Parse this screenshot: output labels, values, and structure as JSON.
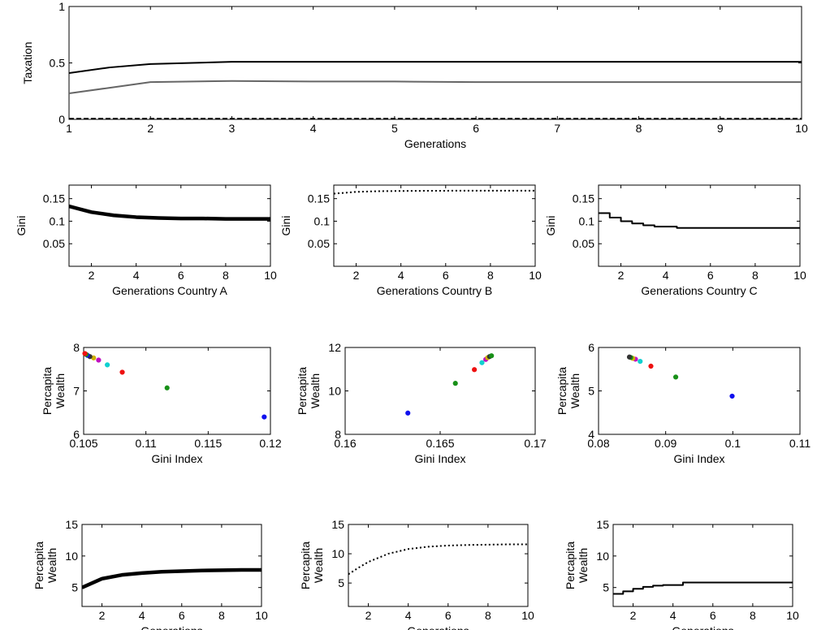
{
  "chart_data": [
    {
      "id": "taxation",
      "type": "line",
      "xlabel": "Generations",
      "ylabel": "Taxation",
      "xlim": [
        1,
        10
      ],
      "ylim": [
        0,
        1
      ],
      "xticks": [
        1,
        2,
        3,
        4,
        5,
        6,
        7,
        8,
        9,
        10
      ],
      "yticks": [
        0,
        0.5,
        1
      ],
      "ytick_labels": [
        "0",
        "0.5",
        "1"
      ],
      "series": [
        {
          "style": "solid",
          "color": "#000000",
          "x": [
            1,
            1.5,
            2,
            3,
            4,
            5,
            6,
            7,
            8,
            9,
            10
          ],
          "y": [
            0.41,
            0.46,
            0.49,
            0.51,
            0.51,
            0.51,
            0.51,
            0.51,
            0.51,
            0.51,
            0.51
          ]
        },
        {
          "style": "solid",
          "color": "#666666",
          "x": [
            1,
            1.5,
            2,
            3,
            4,
            5,
            6,
            7,
            8,
            9,
            10
          ],
          "y": [
            0.23,
            0.28,
            0.33,
            0.34,
            0.335,
            0.335,
            0.33,
            0.33,
            0.33,
            0.33,
            0.33
          ]
        },
        {
          "style": "dashed",
          "color": "#000000",
          "x": [
            1,
            10
          ],
          "y": [
            0.005,
            0.005
          ]
        }
      ]
    },
    {
      "id": "gini-a",
      "type": "line",
      "xlabel": "Generations Country A",
      "ylabel": "Gini",
      "xlim": [
        1,
        10
      ],
      "ylim": [
        0,
        0.18
      ],
      "xticks": [
        2,
        4,
        6,
        8,
        10
      ],
      "yticks": [
        0.05,
        0.1,
        0.15
      ],
      "ytick_labels": [
        "0.05",
        "0.1",
        "0.15"
      ],
      "series": [
        {
          "style": "thick",
          "color": "#000000",
          "x": [
            1,
            2,
            3,
            4,
            5,
            6,
            7,
            8,
            9,
            10
          ],
          "y": [
            0.133,
            0.12,
            0.113,
            0.109,
            0.107,
            0.106,
            0.106,
            0.105,
            0.105,
            0.105
          ]
        }
      ]
    },
    {
      "id": "gini-b",
      "type": "line",
      "xlabel": "Generations Country B",
      "ylabel": "Gini",
      "xlim": [
        1,
        10
      ],
      "ylim": [
        0,
        0.18
      ],
      "xticks": [
        2,
        4,
        6,
        8,
        10
      ],
      "yticks": [
        0.05,
        0.1,
        0.15
      ],
      "ytick_labels": [
        "0.05",
        "0.1",
        "0.15"
      ],
      "series": [
        {
          "style": "dotted",
          "color": "#000000",
          "x": [
            1,
            2,
            3,
            4,
            5,
            6,
            7,
            8,
            9,
            10
          ],
          "y": [
            0.161,
            0.165,
            0.1665,
            0.167,
            0.1673,
            0.1675,
            0.1676,
            0.1677,
            0.1677,
            0.1677
          ]
        }
      ]
    },
    {
      "id": "gini-c",
      "type": "line",
      "xlabel": "Generations Country C",
      "ylabel": "Gini",
      "xlim": [
        1,
        10
      ],
      "ylim": [
        0,
        0.18
      ],
      "xticks": [
        2,
        4,
        6,
        8,
        10
      ],
      "yticks": [
        0.05,
        0.1,
        0.15
      ],
      "ytick_labels": [
        "0.05",
        "0.1",
        "0.15"
      ],
      "series": [
        {
          "style": "step",
          "color": "#000000",
          "x": [
            1,
            1.5,
            2,
            2.5,
            3,
            3.5,
            4.5,
            10
          ],
          "y": [
            0.118,
            0.108,
            0.1,
            0.095,
            0.091,
            0.088,
            0.085,
            0.085
          ]
        }
      ]
    },
    {
      "id": "scatter-a",
      "type": "scatter",
      "xlabel": "Gini Index",
      "ylabel": [
        "Percapita",
        "Wealth"
      ],
      "xlim": [
        0.105,
        0.12
      ],
      "ylim": [
        6,
        8
      ],
      "xticks": [
        0.105,
        0.11,
        0.115,
        0.12
      ],
      "xtick_labels": [
        "0.105",
        "0.11",
        "0.115",
        "0.12"
      ],
      "yticks": [
        6,
        7,
        8
      ],
      "ytick_labels": [
        "6",
        "7",
        "8"
      ],
      "points": [
        {
          "x": 0.1195,
          "y": 6.4,
          "color": "#1010ee"
        },
        {
          "x": 0.1117,
          "y": 7.07,
          "color": "#189018"
        },
        {
          "x": 0.1081,
          "y": 7.43,
          "color": "#ee1010"
        },
        {
          "x": 0.1069,
          "y": 7.6,
          "color": "#10d0d0"
        },
        {
          "x": 0.1062,
          "y": 7.71,
          "color": "#c010c0"
        },
        {
          "x": 0.1058,
          "y": 7.76,
          "color": "#d0b000"
        },
        {
          "x": 0.1055,
          "y": 7.79,
          "color": "#333333"
        },
        {
          "x": 0.1053,
          "y": 7.82,
          "color": "#1010ee"
        },
        {
          "x": 0.1052,
          "y": 7.84,
          "color": "#189018"
        },
        {
          "x": 0.1051,
          "y": 7.86,
          "color": "#ee1010"
        }
      ]
    },
    {
      "id": "scatter-b",
      "type": "scatter",
      "xlabel": "Gini Index",
      "ylabel": [
        "Percapita",
        "Wealth"
      ],
      "xlim": [
        0.16,
        0.17
      ],
      "ylim": [
        8,
        12
      ],
      "xticks": [
        0.16,
        0.165,
        0.17
      ],
      "xtick_labels": [
        "0.16",
        "0.165",
        "0.17"
      ],
      "yticks": [
        8,
        10,
        12
      ],
      "ytick_labels": [
        "8",
        "10",
        "12"
      ],
      "points": [
        {
          "x": 0.1633,
          "y": 8.98,
          "color": "#1010ee"
        },
        {
          "x": 0.1658,
          "y": 10.35,
          "color": "#189018"
        },
        {
          "x": 0.1668,
          "y": 10.98,
          "color": "#ee1010"
        },
        {
          "x": 0.1672,
          "y": 11.3,
          "color": "#10d0d0"
        },
        {
          "x": 0.1674,
          "y": 11.45,
          "color": "#c010c0"
        },
        {
          "x": 0.1675,
          "y": 11.53,
          "color": "#d0b000"
        },
        {
          "x": 0.1676,
          "y": 11.58,
          "color": "#333333"
        },
        {
          "x": 0.1677,
          "y": 11.62,
          "color": "#189018"
        }
      ]
    },
    {
      "id": "scatter-c",
      "type": "scatter",
      "xlabel": "Gini Index",
      "ylabel": [
        "Percapita",
        "Wealth"
      ],
      "xlim": [
        0.08,
        0.11
      ],
      "ylim": [
        4,
        6
      ],
      "xticks": [
        0.08,
        0.09,
        0.1,
        0.11
      ],
      "xtick_labels": [
        "0.08",
        "0.09",
        "0.1",
        "0.11"
      ],
      "yticks": [
        4,
        5,
        6
      ],
      "ytick_labels": [
        "4",
        "5",
        "6"
      ],
      "points": [
        {
          "x": 0.0999,
          "y": 4.88,
          "color": "#1010ee"
        },
        {
          "x": 0.0915,
          "y": 5.32,
          "color": "#189018"
        },
        {
          "x": 0.0878,
          "y": 5.57,
          "color": "#ee1010"
        },
        {
          "x": 0.0862,
          "y": 5.68,
          "color": "#10d0d0"
        },
        {
          "x": 0.0855,
          "y": 5.73,
          "color": "#c010c0"
        },
        {
          "x": 0.0851,
          "y": 5.75,
          "color": "#d0b000"
        },
        {
          "x": 0.0848,
          "y": 5.77,
          "color": "#189018"
        },
        {
          "x": 0.0846,
          "y": 5.78,
          "color": "#333333"
        }
      ]
    },
    {
      "id": "wealth-a",
      "type": "line",
      "xlabel": "Generations",
      "ylabel": [
        "Percapita",
        "Wealth"
      ],
      "xlim": [
        1,
        10
      ],
      "ylim": [
        2,
        15
      ],
      "xticks": [
        2,
        4,
        6,
        8,
        10
      ],
      "yticks": [
        5,
        10,
        15
      ],
      "ytick_labels": [
        "5",
        "10",
        "15"
      ],
      "series": [
        {
          "style": "thick",
          "color": "#000000",
          "x": [
            1,
            2,
            3,
            4,
            5,
            6,
            7,
            8,
            9,
            10
          ],
          "y": [
            5.0,
            6.4,
            7.0,
            7.3,
            7.5,
            7.6,
            7.7,
            7.75,
            7.8,
            7.8
          ]
        }
      ]
    },
    {
      "id": "wealth-b",
      "type": "line",
      "xlabel": "Generations",
      "ylabel": [
        "Percapita",
        "Wealth"
      ],
      "xlim": [
        1,
        10
      ],
      "ylim": [
        1,
        15
      ],
      "xticks": [
        2,
        4,
        6,
        8,
        10
      ],
      "yticks": [
        5,
        10,
        15
      ],
      "ytick_labels": [
        "5",
        "10",
        "15"
      ],
      "series": [
        {
          "style": "dotted",
          "color": "#000000",
          "x": [
            1,
            1.5,
            2,
            2.5,
            3,
            4,
            5,
            6,
            7,
            8,
            9,
            10
          ],
          "y": [
            6.5,
            7.6,
            8.6,
            9.3,
            10.0,
            10.8,
            11.2,
            11.4,
            11.5,
            11.55,
            11.6,
            11.6
          ]
        }
      ]
    },
    {
      "id": "wealth-c",
      "type": "line",
      "xlabel": "Generations",
      "ylabel": [
        "Percapita",
        "Wealth"
      ],
      "xlim": [
        1,
        10
      ],
      "ylim": [
        2,
        15
      ],
      "xticks": [
        2,
        4,
        6,
        8,
        10
      ],
      "yticks": [
        5,
        10,
        15
      ],
      "ytick_labels": [
        "5",
        "10",
        "15"
      ],
      "series": [
        {
          "style": "step",
          "color": "#000000",
          "x": [
            1,
            1.5,
            2,
            2.5,
            3,
            3.5,
            4.5,
            10
          ],
          "y": [
            4.0,
            4.4,
            4.8,
            5.1,
            5.3,
            5.4,
            5.8,
            5.8
          ]
        }
      ]
    }
  ]
}
